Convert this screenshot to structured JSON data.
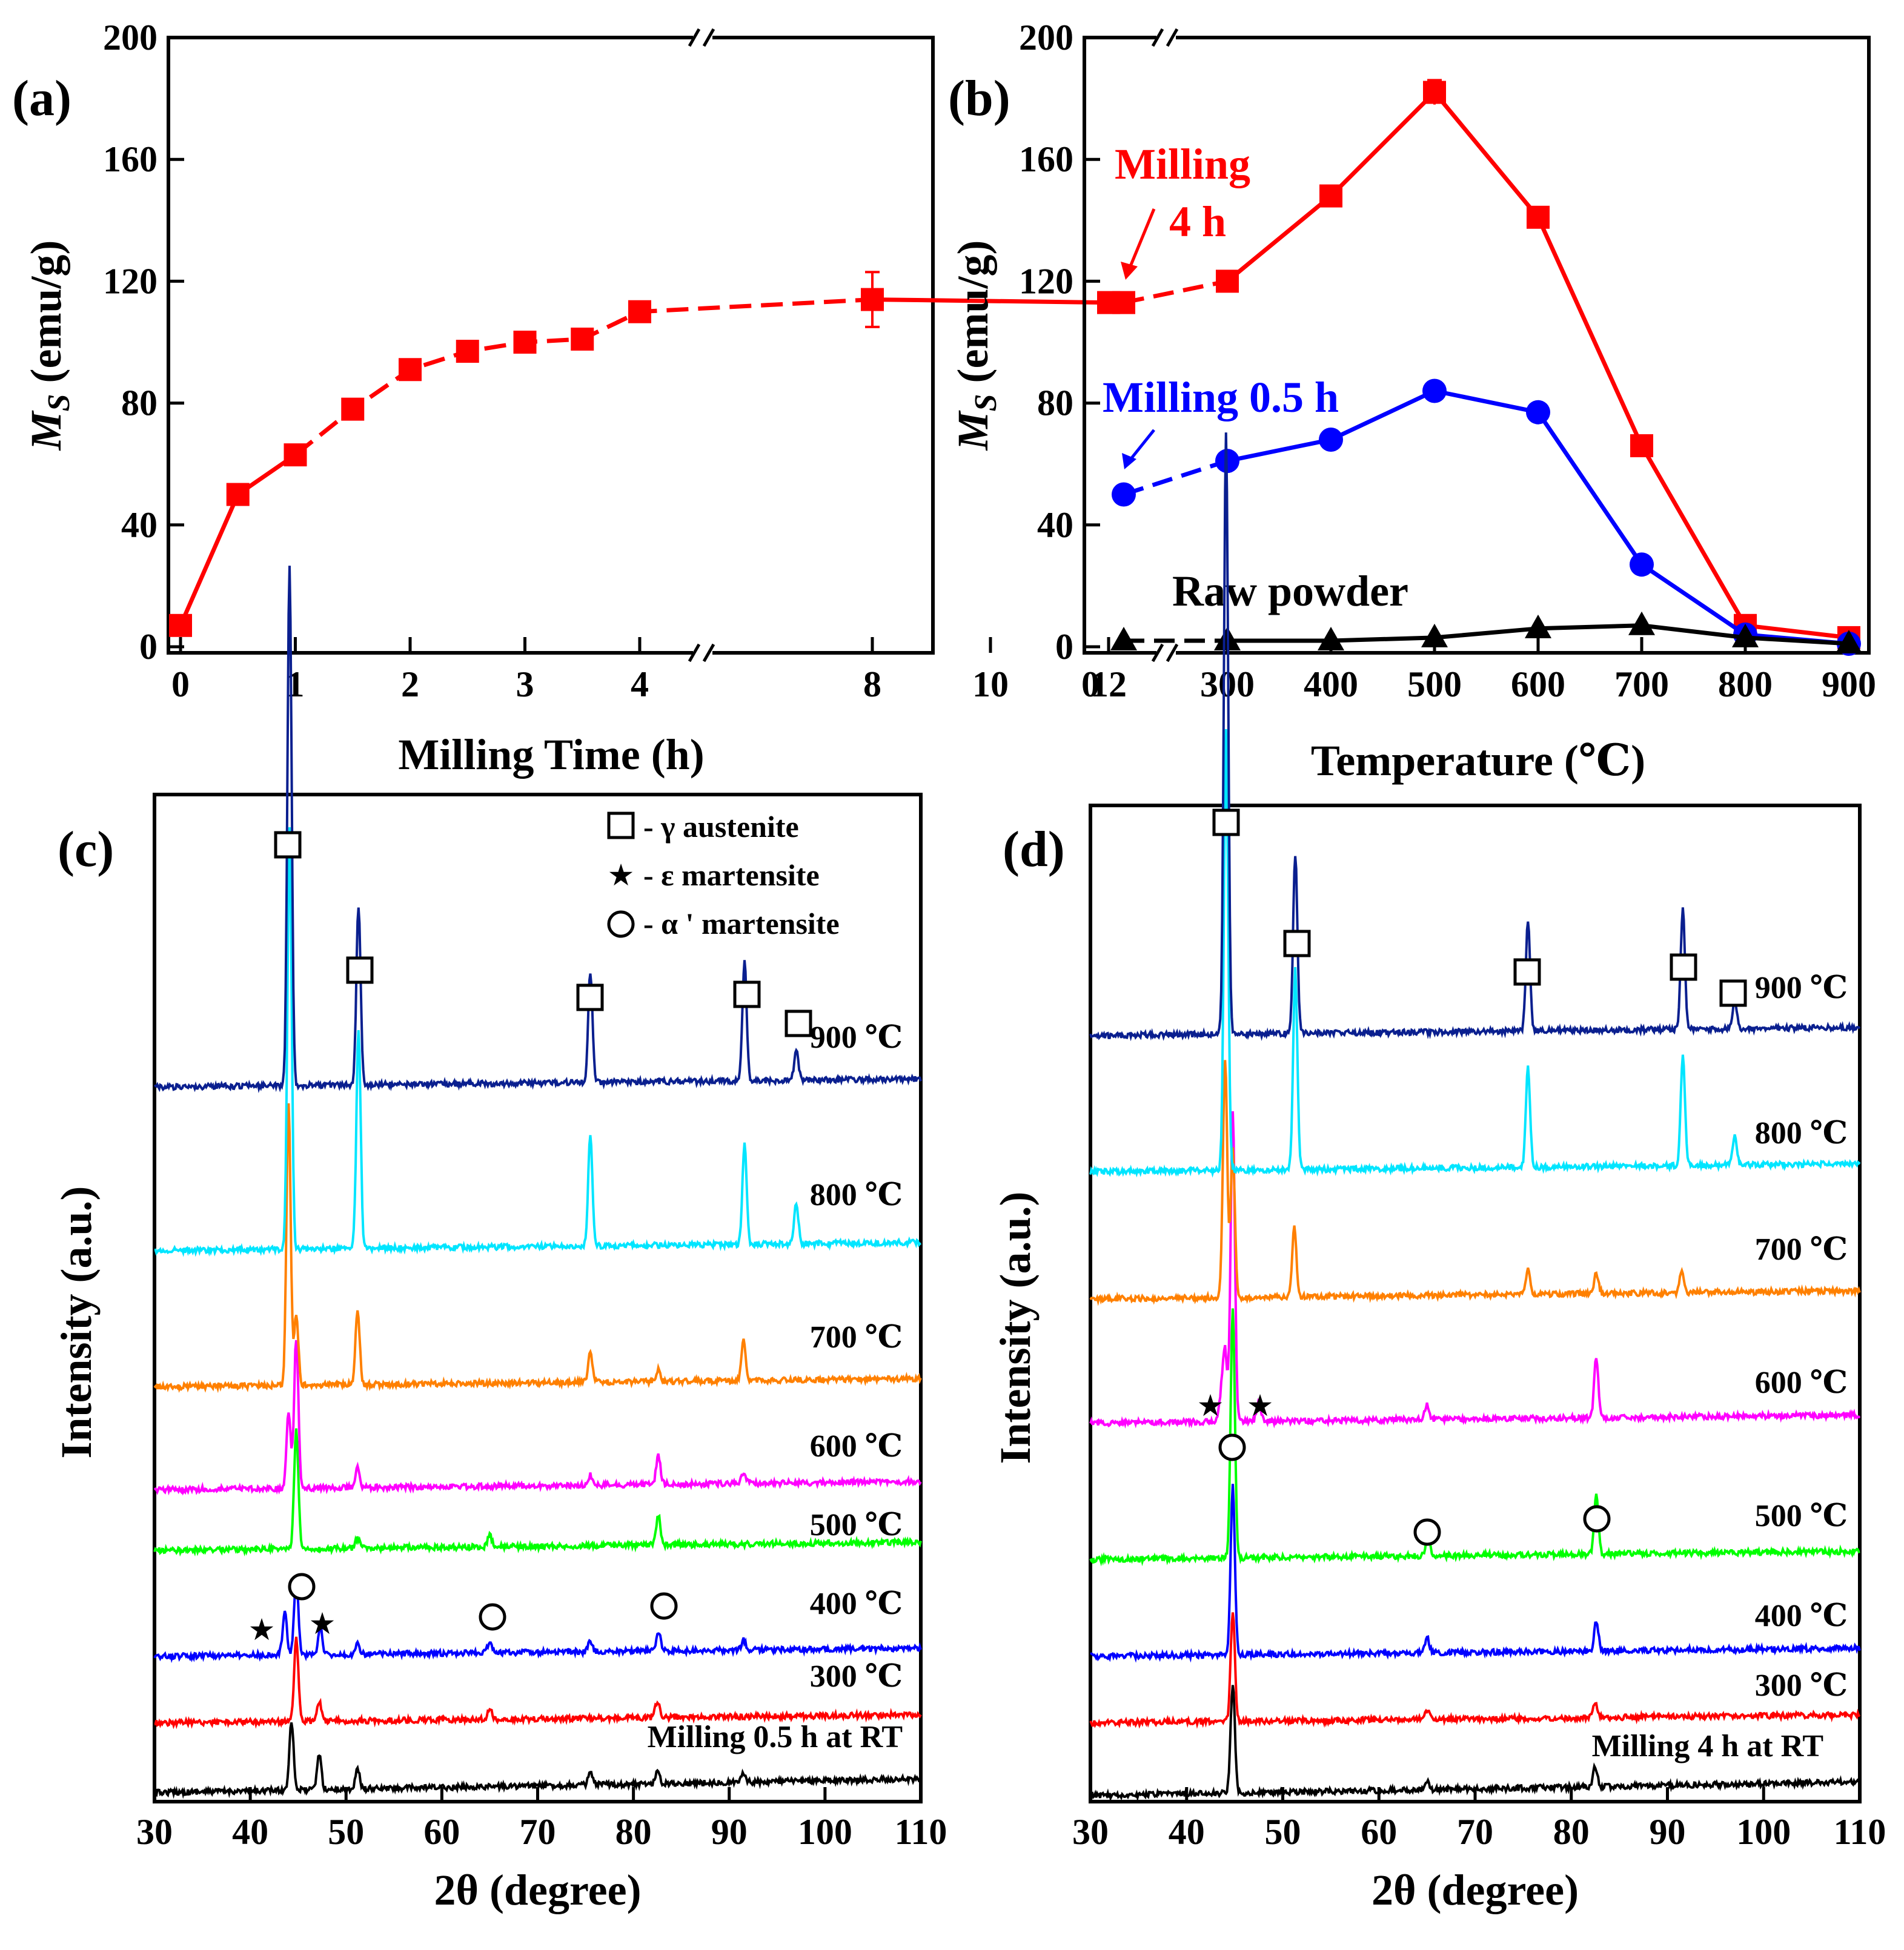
{
  "colors": {
    "red": "#ff0000",
    "blue": "#0000ff",
    "black": "#000000",
    "navy": "#0a1f8f",
    "cyan": "#00e5ff",
    "orange": "#ff8000",
    "magenta": "#ff00ff",
    "green": "#00ff00"
  },
  "chart_data": [
    {
      "panel": "(a)",
      "type": "line",
      "xlabel": "Milling Time (h)",
      "ylabel_main": "M",
      "ylabel_sub": "S",
      "ylabel_unit": "(emu/g)",
      "ylim": [
        0,
        200
      ],
      "yticks": [
        "0",
        "40",
        "80",
        "120",
        "160",
        "200"
      ],
      "xticks": [
        "0",
        "1",
        "2",
        "3",
        "4",
        "8",
        "10",
        "12"
      ],
      "axis_break": "//",
      "series": [
        {
          "name": "Ms",
          "color": "#ff0000",
          "marker": "square",
          "x": [
            0,
            0.5,
            1,
            1.5,
            2,
            2.5,
            3,
            3.5,
            4,
            8,
            12
          ],
          "y": [
            7,
            50,
            63,
            78,
            91,
            97,
            100,
            101,
            110,
            114,
            113
          ],
          "error": [
            0,
            0,
            0,
            0,
            0,
            0,
            0,
            0,
            0,
            9,
            0
          ]
        }
      ]
    },
    {
      "panel": "(b)",
      "type": "line",
      "xlabel": "Temperature (℃)",
      "ylabel_main": "M",
      "ylabel_sub": "S",
      "ylabel_unit": "(emu/g)",
      "ylim": [
        0,
        200
      ],
      "yticks": [
        "0",
        "40",
        "80",
        "120",
        "160",
        "200"
      ],
      "xticks": [
        "0",
        "300",
        "400",
        "500",
        "600",
        "700",
        "800",
        "900"
      ],
      "axis_break": "//",
      "series": [
        {
          "name": "Milling 4 h",
          "label_line1": "Milling",
          "label_line2": "4 h",
          "color": "#ff0000",
          "marker": "square",
          "x": [
            25,
            300,
            400,
            500,
            600,
            700,
            800,
            900
          ],
          "y": [
            113,
            120,
            148,
            182,
            141,
            66,
            7,
            3
          ]
        },
        {
          "name": "Milling 0.5 h",
          "color": "#0000ff",
          "marker": "circle",
          "x": [
            25,
            300,
            400,
            500,
            600,
            700,
            800,
            900
          ],
          "y": [
            50,
            61,
            68,
            84,
            77,
            27,
            4,
            1
          ]
        },
        {
          "name": "Raw powder",
          "color": "#000000",
          "marker": "triangle",
          "x": [
            25,
            300,
            400,
            500,
            600,
            700,
            800,
            900
          ],
          "y": [
            2,
            2,
            2,
            3,
            6,
            7,
            3,
            1
          ]
        }
      ]
    },
    {
      "panel": "(c)",
      "type": "line",
      "xlabel": "2θ (degree)",
      "ylabel": "Intensity (a.u.)",
      "xlim": [
        30,
        110
      ],
      "xticks": [
        "30",
        "40",
        "50",
        "60",
        "70",
        "80",
        "90",
        "100",
        "110"
      ],
      "legend": [
        {
          "symbol": "□",
          "text": "- γ austenite"
        },
        {
          "symbol": "★",
          "text": "- ε martensite"
        },
        {
          "symbol": "○",
          "text": "- α ' martensite"
        }
      ],
      "series": [
        {
          "name": "Milling 0.5 h at RT",
          "color": "#000000",
          "peaks": [
            [
              44.3,
              0.35
            ],
            [
              47.2,
              0.18
            ],
            [
              51.2,
              0.1
            ],
            [
              75.5,
              0.06
            ],
            [
              82.5,
              0.06
            ],
            [
              91.5,
              0.05
            ]
          ]
        },
        {
          "name": "300 ℃",
          "color": "#ff0000",
          "peaks": [
            [
              44.8,
              0.42
            ],
            [
              47.2,
              0.1
            ],
            [
              65.0,
              0.05
            ],
            [
              82.5,
              0.08
            ]
          ]
        },
        {
          "name": "400 ℃",
          "color": "#0000ff",
          "peaks": [
            [
              43.6,
              0.22
            ],
            [
              44.8,
              0.38
            ],
            [
              47.3,
              0.14
            ],
            [
              51.2,
              0.05
            ],
            [
              65.0,
              0.06
            ],
            [
              75.5,
              0.05
            ],
            [
              82.6,
              0.1
            ],
            [
              91.5,
              0.05
            ]
          ]
        },
        {
          "name": "500 ℃",
          "color": "#00ff00",
          "peaks": [
            [
              44.8,
              0.6
            ],
            [
              51.2,
              0.05
            ],
            [
              65.0,
              0.06
            ],
            [
              82.6,
              0.15
            ]
          ]
        },
        {
          "name": "600 ℃",
          "color": "#ff00ff",
          "peaks": [
            [
              44.0,
              0.38
            ],
            [
              44.8,
              0.75
            ],
            [
              51.2,
              0.1
            ],
            [
              75.5,
              0.05
            ],
            [
              82.6,
              0.15
            ],
            [
              91.5,
              0.05
            ]
          ]
        },
        {
          "name": "700 ℃",
          "color": "#ff8000",
          "peaks": [
            [
              44.0,
              1.4
            ],
            [
              44.8,
              0.35
            ],
            [
              51.2,
              0.38
            ],
            [
              75.5,
              0.15
            ],
            [
              82.6,
              0.06
            ],
            [
              91.5,
              0.2
            ]
          ]
        },
        {
          "name": "800 ℃",
          "color": "#00e5ff",
          "peaks": [
            [
              44.1,
              2.1
            ],
            [
              51.3,
              1.1
            ],
            [
              75.5,
              0.55
            ],
            [
              91.6,
              0.5
            ],
            [
              97.0,
              0.2
            ]
          ]
        },
        {
          "name": "900 ℃",
          "color": "#0a1f8f",
          "peaks": [
            [
              44.1,
              2.6
            ],
            [
              51.3,
              0.9
            ],
            [
              75.5,
              0.55
            ],
            [
              91.6,
              0.6
            ],
            [
              97.0,
              0.15
            ]
          ]
        }
      ]
    },
    {
      "panel": "(d)",
      "type": "line",
      "xlabel": "2θ (degree)",
      "ylabel": "Intensity (a.u.)",
      "xlim": [
        30,
        110
      ],
      "xticks": [
        "30",
        "40",
        "50",
        "60",
        "70",
        "80",
        "90",
        "100",
        "110"
      ],
      "series": [
        {
          "name": "Milling 4 h at RT",
          "color": "#000000",
          "peaks": [
            [
              44.8,
              0.55
            ],
            [
              65.0,
              0.05
            ],
            [
              82.5,
              0.1
            ]
          ]
        },
        {
          "name": "300 ℃",
          "color": "#ff0000",
          "peaks": [
            [
              44.8,
              0.55
            ],
            [
              65.0,
              0.05
            ],
            [
              82.5,
              0.08
            ]
          ]
        },
        {
          "name": "400 ℃",
          "color": "#0000ff",
          "peaks": [
            [
              44.8,
              0.85
            ],
            [
              65.0,
              0.08
            ],
            [
              82.6,
              0.15
            ]
          ]
        },
        {
          "name": "500 ℃",
          "color": "#00ff00",
          "peaks": [
            [
              44.8,
              1.25
            ],
            [
              65.1,
              0.12
            ],
            [
              82.6,
              0.3
            ]
          ]
        },
        {
          "name": "600 ℃",
          "color": "#ff00ff",
          "peaks": [
            [
              43.6,
              0.12
            ],
            [
              44.0,
              0.35
            ],
            [
              44.8,
              1.55
            ],
            [
              47.5,
              0.1
            ],
            [
              65.0,
              0.08
            ],
            [
              82.6,
              0.3
            ]
          ]
        },
        {
          "name": "700 ℃",
          "color": "#ff8000",
          "peaks": [
            [
              44.0,
              1.2
            ],
            [
              44.8,
              0.75
            ],
            [
              51.2,
              0.35
            ],
            [
              75.5,
              0.12
            ],
            [
              82.6,
              0.1
            ],
            [
              91.5,
              0.12
            ]
          ]
        },
        {
          "name": "800 ℃",
          "color": "#00e5ff",
          "peaks": [
            [
              44.1,
              2.2
            ],
            [
              51.3,
              1.0
            ],
            [
              75.5,
              0.5
            ],
            [
              91.6,
              0.55
            ],
            [
              97.0,
              0.15
            ]
          ]
        },
        {
          "name": "900 ℃",
          "color": "#0a1f8f",
          "peaks": [
            [
              44.1,
              3.0
            ],
            [
              51.3,
              0.9
            ],
            [
              75.5,
              0.55
            ],
            [
              91.6,
              0.6
            ],
            [
              97.0,
              0.15
            ]
          ]
        }
      ]
    }
  ]
}
